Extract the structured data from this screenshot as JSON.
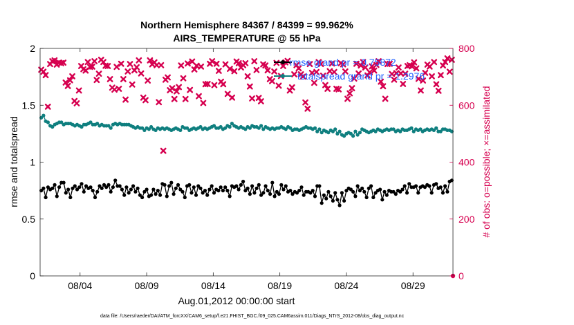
{
  "chart_data": {
    "type": "line",
    "title_line1": "Northern Hemisphere 84367 / 84399 = 99.962%",
    "title_line2": "AIRS_TEMPERATURE @ 55 hPa",
    "xlabel": "Aug.01,2012 00:00:00 start",
    "ylabel": "rmse and totalspread",
    "ylabel_right": "# of obs: o=possible; ×=assimilated",
    "footer": "data file: /Users/raeder/DAI/ATM_forcXX/CAM6_setup/f.e21.FHIST_BGC.f09_025.CAM6assim.011/Diags_NTrS_2012-08/obs_diag_output.nc",
    "xlim": [
      1,
      32
    ],
    "ylim": [
      0,
      2
    ],
    "ylim_right": [
      0,
      800
    ],
    "x_ticks": [
      4,
      9,
      14,
      19,
      24,
      29
    ],
    "x_tick_labels": [
      "08/04",
      "08/09",
      "08/14",
      "08/19",
      "08/24",
      "08/29"
    ],
    "y_ticks": [
      0,
      0.5,
      1,
      1.5,
      2
    ],
    "y_tick_labels": [
      "0",
      "0.5",
      "1",
      "1.5",
      "2"
    ],
    "y_ticks_right": [
      0,
      200,
      400,
      600,
      800
    ],
    "y_tick_labels_right": [
      "0",
      "200",
      "400",
      "600",
      "800"
    ],
    "legend": [
      {
        "label": "rmse grand pr = 0.75872",
        "color": "#000000"
      },
      {
        "label": "totalspread grand pr = 1.2976",
        "color": "#0f7f7f"
      }
    ],
    "series": [
      {
        "name": "rmse",
        "color": "#000000",
        "values": [
          0.75,
          0.77,
          0.69,
          0.78,
          0.76,
          0.77,
          0.8,
          0.7,
          0.78,
          0.82,
          0.82,
          0.73,
          0.76,
          0.69,
          0.77,
          0.79,
          0.76,
          0.78,
          0.81,
          0.74,
          0.79,
          0.77,
          0.78,
          0.75,
          0.69,
          0.74,
          0.79,
          0.77,
          0.8,
          0.78,
          0.8,
          0.74,
          0.78,
          0.84,
          0.79,
          0.79,
          0.76,
          0.71,
          0.78,
          0.73,
          0.76,
          0.79,
          0.74,
          0.77,
          0.71,
          0.69,
          0.74,
          0.76,
          0.7,
          0.71,
          0.76,
          0.72,
          0.75,
          0.71,
          0.81,
          0.8,
          0.7,
          0.79,
          0.82,
          0.72,
          0.77,
          0.8,
          0.76,
          0.74,
          0.69,
          0.79,
          0.8,
          0.73,
          0.78,
          0.71,
          0.79,
          0.77,
          0.73,
          0.75,
          0.71,
          0.76,
          0.79,
          0.73,
          0.76,
          0.75,
          0.78,
          0.75,
          0.78,
          0.75,
          0.7,
          0.79,
          0.78,
          0.79,
          0.76,
          0.8,
          0.83,
          0.75,
          0.77,
          0.72,
          0.79,
          0.73,
          0.77,
          0.8,
          0.71,
          0.73,
          0.79,
          0.75,
          0.72,
          0.82,
          0.7,
          0.74,
          0.72,
          0.8,
          0.76,
          0.79,
          0.74,
          0.75,
          0.72,
          0.74,
          0.73,
          0.75,
          0.78,
          0.71,
          0.74,
          0.74,
          0.73,
          0.75,
          0.7,
          0.79,
          0.79,
          0.64,
          0.71,
          0.68,
          0.74,
          0.7,
          0.66,
          0.73,
          0.67,
          0.62,
          0.73,
          0.66,
          0.75,
          0.77,
          0.76,
          0.74,
          0.7,
          0.79,
          0.75,
          0.77,
          0.74,
          0.69,
          0.77,
          0.79,
          0.69,
          0.73,
          0.75,
          0.76,
          0.67,
          0.74,
          0.71,
          0.75,
          0.74,
          0.74,
          0.72,
          0.75,
          0.74,
          0.76,
          0.79,
          0.73,
          0.81,
          0.78,
          0.78,
          0.79,
          0.73,
          0.78,
          0.79,
          0.78,
          0.8,
          0.79,
          0.73,
          0.8,
          0.81,
          0.77,
          0.78,
          0.73,
          0.79,
          0.74,
          0.83,
          0.84
        ]
      },
      {
        "name": "totalspread",
        "color": "#0f7f7f",
        "values": [
          1.39,
          1.41,
          1.36,
          1.35,
          1.32,
          1.31,
          1.33,
          1.34,
          1.35,
          1.35,
          1.33,
          1.34,
          1.34,
          1.34,
          1.33,
          1.32,
          1.33,
          1.32,
          1.31,
          1.33,
          1.33,
          1.34,
          1.35,
          1.33,
          1.33,
          1.34,
          1.32,
          1.33,
          1.32,
          1.32,
          1.32,
          1.3,
          1.33,
          1.34,
          1.33,
          1.34,
          1.33,
          1.33,
          1.33,
          1.33,
          1.32,
          1.31,
          1.3,
          1.31,
          1.3,
          1.3,
          1.28,
          1.3,
          1.29,
          1.31,
          1.29,
          1.28,
          1.3,
          1.29,
          1.3,
          1.29,
          1.3,
          1.29,
          1.28,
          1.29,
          1.3,
          1.29,
          1.28,
          1.31,
          1.3,
          1.3,
          1.28,
          1.29,
          1.3,
          1.29,
          1.3,
          1.31,
          1.29,
          1.3,
          1.29,
          1.3,
          1.31,
          1.32,
          1.3,
          1.3,
          1.31,
          1.29,
          1.3,
          1.32,
          1.31,
          1.34,
          1.32,
          1.31,
          1.3,
          1.31,
          1.3,
          1.29,
          1.31,
          1.3,
          1.32,
          1.31,
          1.31,
          1.3,
          1.32,
          1.29,
          1.31,
          1.3,
          1.29,
          1.3,
          1.29,
          1.3,
          1.3,
          1.31,
          1.3,
          1.29,
          1.31,
          1.3,
          1.28,
          1.29,
          1.29,
          1.28,
          1.29,
          1.3,
          1.31,
          1.3,
          1.3,
          1.29,
          1.3,
          1.27,
          1.29,
          1.26,
          1.28,
          1.27,
          1.26,
          1.28,
          1.27,
          1.29,
          1.25,
          1.27,
          1.24,
          1.23,
          1.25,
          1.26,
          1.25,
          1.23,
          1.27,
          1.24,
          1.26,
          1.29,
          1.28,
          1.27,
          1.26,
          1.27,
          1.28,
          1.27,
          1.29,
          1.28,
          1.27,
          1.28,
          1.29,
          1.28,
          1.29,
          1.29,
          1.27,
          1.28,
          1.27,
          1.29,
          1.28,
          1.28,
          1.29,
          1.3,
          1.27,
          1.29,
          1.28,
          1.29,
          1.27,
          1.28,
          1.29,
          1.28,
          1.29,
          1.28,
          1.3,
          1.27,
          1.27,
          1.29,
          1.29,
          1.28,
          1.28,
          1.27
        ]
      },
      {
        "name": "obs_assimilated",
        "color": "#d6004f",
        "axis": "right",
        "values": [
          725,
          718,
          706,
          595,
          745,
          755,
          758,
          743,
          750,
          748,
          750,
          680,
          668,
          688,
          702,
          615,
          607,
          652,
          738,
          727,
          722,
          752,
          735,
          736,
          755,
          689,
          711,
          760,
          752,
          739,
          738,
          692,
          662,
          655,
          735,
          658,
          746,
          692,
          620,
          719,
          745,
          673,
          723,
          734,
          758,
          712,
          627,
          618,
          687,
          758,
          744,
          751,
          741,
          611,
          741,
          440,
          690,
          698,
          653,
          660,
          622,
          649,
          664,
          740,
          695,
          622,
          747,
          654,
          754,
          726,
          739,
          632,
          736,
          608,
          674,
          675,
          746,
          755,
          671,
          746,
          721,
          683,
          674,
          744,
          640,
          728,
          627,
          720,
          754,
          748,
          733,
          741,
          748,
          702,
          666,
          624,
          755,
          724,
          626,
          614,
          744,
          740,
          723,
          692,
          685,
          719,
          749,
          669,
          703,
          738,
          751,
          756,
          652,
          663,
          709,
          741,
          730,
          709,
          701,
          610,
          588,
          745,
          714,
          679,
          717,
          752,
          745,
          704,
          671,
          658,
          720,
          747,
          717,
          658,
          656,
          748,
          744,
          719,
          623,
          642,
          660,
          694,
          746,
          712,
          740,
          752,
          733,
          705,
          716,
          737,
          722,
          742,
          755,
          683,
          667,
          623,
          745,
          746,
          710,
          690,
          713,
          733,
          712,
          675,
          711,
          738,
          741,
          737,
          751,
          730,
          693,
          652,
          687,
          714,
          743,
          736,
          702,
          752,
          674,
          651,
          706,
          740,
          752,
          765,
          718,
          760
        ]
      },
      {
        "name": "obs_possible",
        "color": "#d6004f",
        "axis": "right",
        "values": [
          0
        ]
      }
    ]
  }
}
